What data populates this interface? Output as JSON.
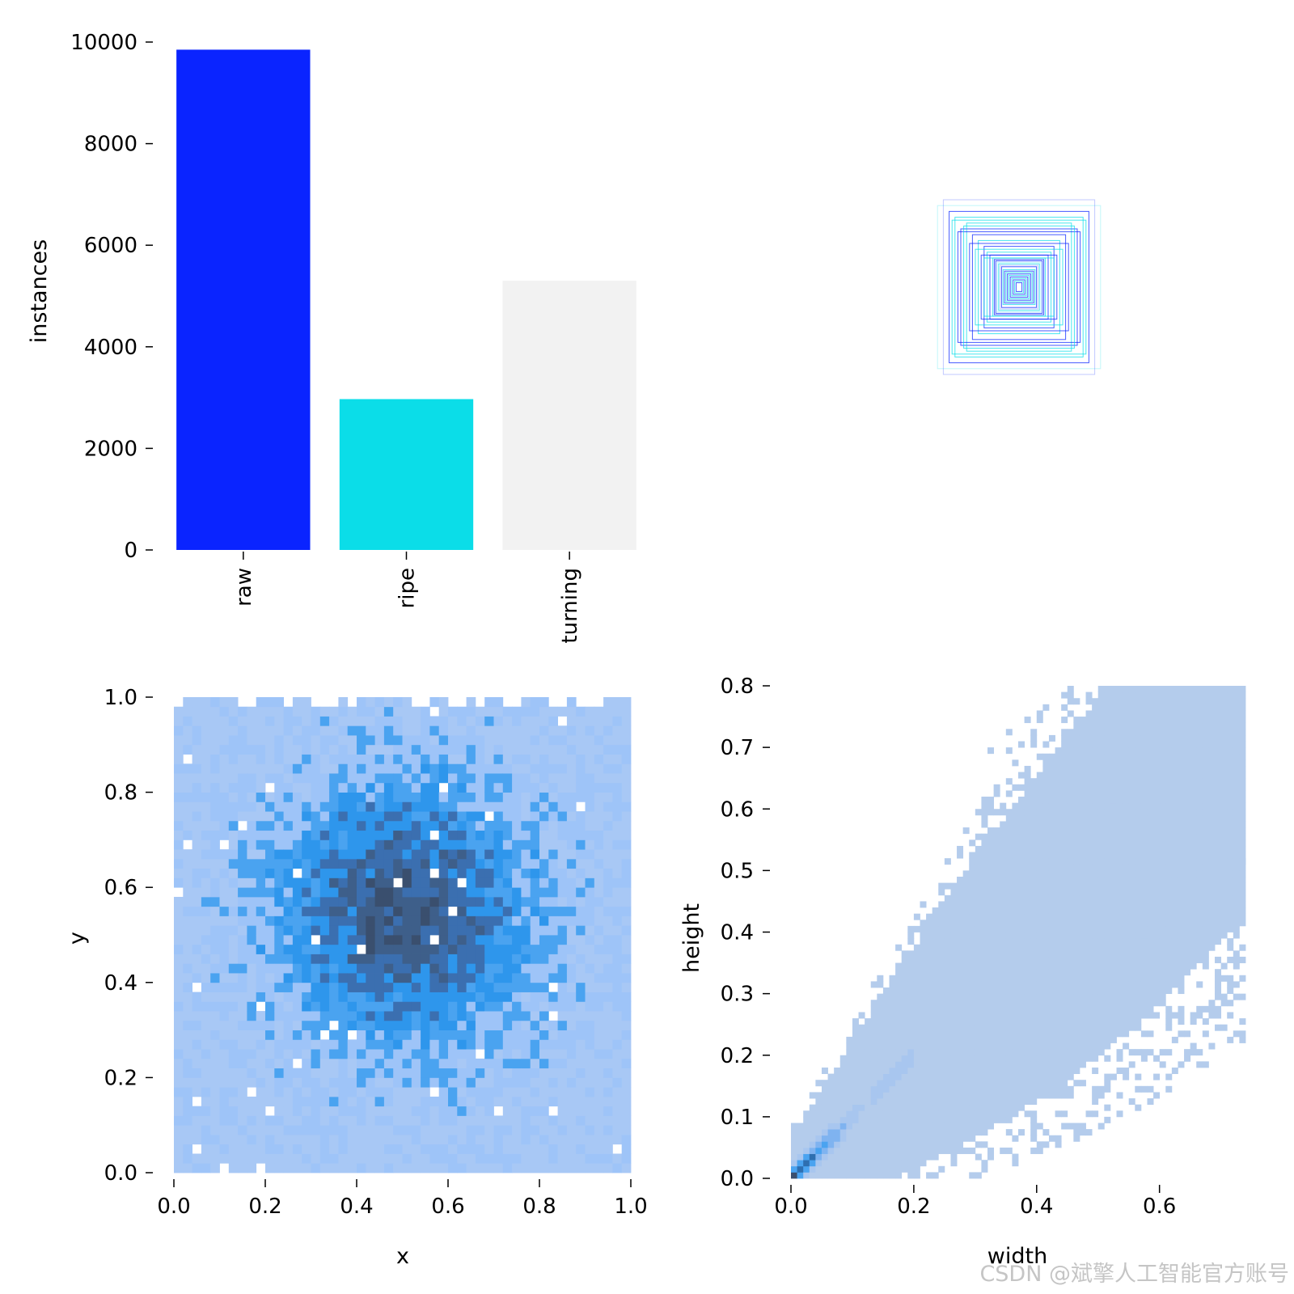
{
  "chart_data": [
    {
      "type": "bar",
      "categories": [
        "raw",
        "ripe",
        "turning"
      ],
      "values": [
        9850,
        2970,
        5300
      ],
      "colors": [
        "#0a24ff",
        "#0bdde8",
        "#f2f2f2"
      ],
      "ylabel": "instances",
      "ylim": [
        0,
        10000
      ],
      "yticks": [
        "0",
        "2000",
        "4000",
        "6000",
        "8000",
        "10000"
      ],
      "grid": false
    },
    {
      "type": "box_overlay",
      "description_values": "normalized label boxes centered at (0.5, 0.5)",
      "colors": [
        "#0a24ff",
        "#0bdde8"
      ],
      "boxes_wh": [
        [
          0.24,
          0.26
        ],
        [
          0.22,
          0.24
        ],
        [
          0.2,
          0.2
        ],
        [
          0.18,
          0.22
        ],
        [
          0.16,
          0.18
        ],
        [
          0.14,
          0.16
        ],
        [
          0.12,
          0.14
        ],
        [
          0.11,
          0.12
        ],
        [
          0.1,
          0.11
        ],
        [
          0.09,
          0.1
        ],
        [
          0.08,
          0.09
        ],
        [
          0.07,
          0.08
        ],
        [
          0.06,
          0.07
        ],
        [
          0.055,
          0.06
        ],
        [
          0.05,
          0.055
        ],
        [
          0.045,
          0.05
        ],
        [
          0.04,
          0.045
        ],
        [
          0.035,
          0.04
        ],
        [
          0.03,
          0.035
        ],
        [
          0.025,
          0.03
        ],
        [
          0.02,
          0.025
        ],
        [
          0.015,
          0.02
        ],
        [
          0.01,
          0.015
        ],
        [
          0.23,
          0.23
        ],
        [
          0.21,
          0.19
        ],
        [
          0.19,
          0.21
        ],
        [
          0.17,
          0.15
        ],
        [
          0.15,
          0.13
        ],
        [
          0.13,
          0.11
        ],
        [
          0.12,
          0.1
        ],
        [
          0.085,
          0.095
        ],
        [
          0.075,
          0.085
        ],
        [
          0.065,
          0.075
        ],
        [
          0.28,
          0.28
        ],
        [
          0.26,
          0.3
        ]
      ]
    },
    {
      "type": "heatmap",
      "xlabel": "x",
      "ylabel": "y",
      "xlim": [
        0,
        1
      ],
      "ylim": [
        0,
        1
      ],
      "xticks": [
        "0.0",
        "0.2",
        "0.4",
        "0.6",
        "0.8",
        "1.0"
      ],
      "yticks": [
        "0.0",
        "0.2",
        "0.4",
        "0.6",
        "0.8",
        "1.0"
      ],
      "bins": 50,
      "density_center": [
        0.5,
        0.55
      ],
      "colormap": [
        "#a8c8f5",
        "#9ec4f8",
        "#4aa3f0",
        "#2e96ec",
        "#3b6fb0",
        "#3e5f8a",
        "#3a4f6e"
      ]
    },
    {
      "type": "heatmap",
      "xlabel": "width",
      "ylabel": "height",
      "xlim": [
        0,
        0.74
      ],
      "ylim": [
        0,
        0.8
      ],
      "xticks": [
        "0.0",
        "0.2",
        "0.4",
        "0.6"
      ],
      "yticks": [
        "0.0",
        "0.1",
        "0.2",
        "0.3",
        "0.4",
        "0.5",
        "0.6",
        "0.7",
        "0.8"
      ],
      "bins": 74,
      "trend": "height ≈ width",
      "colormap": [
        "#b4ccec",
        "#a8c6ef",
        "#7fb3f0",
        "#4aa3f0",
        "#2e6fb0",
        "#3a4f6e"
      ]
    }
  ],
  "watermark": "CSDN @斌擎人工智能官方账号"
}
